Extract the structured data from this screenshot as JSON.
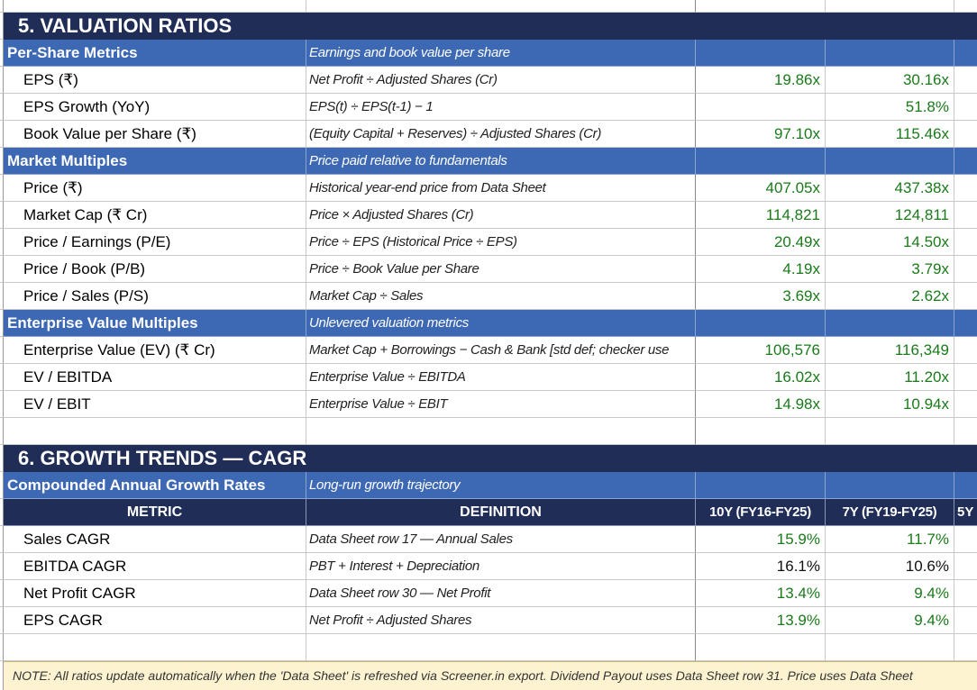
{
  "section5": {
    "title": "5.  VALUATION RATIOS",
    "groups": [
      {
        "name": "Per-Share Metrics",
        "desc": "Earnings and book value per share",
        "rows": [
          {
            "metric": "EPS (₹)",
            "def": "Net Profit ÷ Adjusted Shares (Cr)",
            "v1": "19.86x",
            "v2": "30.16x"
          },
          {
            "metric": "EPS Growth (YoY)",
            "def": "EPS(t) ÷ EPS(t-1) − 1",
            "v1": "",
            "v2": "51.8%"
          },
          {
            "metric": "Book Value per Share (₹)",
            "def": "(Equity Capital + Reserves) ÷ Adjusted Shares (Cr)",
            "v1": "97.10x",
            "v2": "115.46x"
          }
        ]
      },
      {
        "name": "Market Multiples",
        "desc": "Price paid relative to fundamentals",
        "rows": [
          {
            "metric": "Price (₹)",
            "def": "Historical year-end price from Data Sheet",
            "v1": "407.05x",
            "v2": "437.38x"
          },
          {
            "metric": "Market Cap (₹ Cr)",
            "def": "Price × Adjusted Shares (Cr)",
            "v1": "114,821",
            "v2": "124,811"
          },
          {
            "metric": "Price / Earnings (P/E)",
            "def": "Price ÷ EPS  (Historical Price ÷ EPS)",
            "v1": "20.49x",
            "v2": "14.50x"
          },
          {
            "metric": "Price / Book (P/B)",
            "def": "Price ÷ Book Value per Share",
            "v1": "4.19x",
            "v2": "3.79x"
          },
          {
            "metric": "Price / Sales (P/S)",
            "def": "Market Cap ÷ Sales",
            "v1": "3.69x",
            "v2": "2.62x"
          }
        ]
      },
      {
        "name": "Enterprise Value Multiples",
        "desc": "Unlevered valuation metrics",
        "rows": [
          {
            "metric": "Enterprise Value (EV) (₹ Cr)",
            "def": "Market Cap + Borrowings − Cash & Bank  [std def; checker use",
            "v1": "106,576",
            "v2": "116,349"
          },
          {
            "metric": "EV / EBITDA",
            "def": "Enterprise Value ÷ EBITDA",
            "v1": "16.02x",
            "v2": "11.20x"
          },
          {
            "metric": "EV / EBIT",
            "def": "Enterprise Value ÷ EBIT",
            "v1": "14.98x",
            "v2": "10.94x"
          }
        ]
      }
    ]
  },
  "section6": {
    "title": "6.  GROWTH TRENDS — CAGR",
    "group": {
      "name": "Compounded Annual Growth Rates",
      "desc": "Long-run growth trajectory"
    },
    "headers": {
      "metric": "METRIC",
      "definition": "DEFINITION",
      "col1": "10Y (FY16-FY25)",
      "col2": "7Y  (FY19-FY25)",
      "col3": "5Y"
    },
    "rows": [
      {
        "metric": "Sales CAGR",
        "def": "Data Sheet row 17 — Annual Sales",
        "v1": "15.9%",
        "v2": "11.7%",
        "green": true
      },
      {
        "metric": "EBITDA CAGR",
        "def": "PBT + Interest + Depreciation",
        "v1": "16.1%",
        "v2": "10.6%",
        "green": false
      },
      {
        "metric": "Net Profit CAGR",
        "def": "Data Sheet row 30 — Net Profit",
        "v1": "13.4%",
        "v2": "9.4%",
        "green": true
      },
      {
        "metric": "EPS CAGR",
        "def": "Net Profit ÷ Adjusted Shares",
        "v1": "13.9%",
        "v2": "9.4%",
        "green": true
      }
    ]
  },
  "note": "NOTE: All ratios update automatically when the 'Data Sheet' is refreshed via Screener.in export.  Dividend Payout uses Data Sheet row 31. Price uses Data Sheet",
  "colors": {
    "title_bg": "#1f2d57",
    "section_bg": "#3d68b4",
    "value_green": "#1a7a1a",
    "note_bg": "#fdf3d0"
  }
}
